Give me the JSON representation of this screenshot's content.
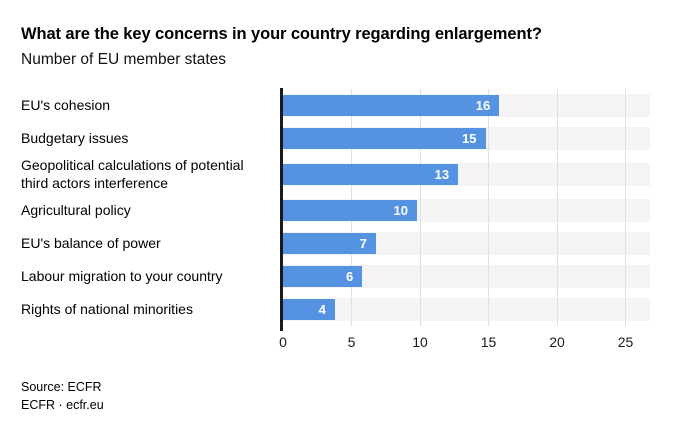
{
  "header": {
    "title": "What are the key concerns in your country regarding enlargement?",
    "subtitle": "Number of EU member states"
  },
  "chart_data": {
    "type": "bar",
    "orientation": "horizontal",
    "title": "What are the key concerns in your country regarding enlargement?",
    "subtitle": "Number of EU member states",
    "categories": [
      "EU's cohesion",
      "Budgetary issues",
      "Geopolitical calculations of potential third actors interference",
      "Agricultural policy",
      "EU's balance of power",
      "Labour migration to your country",
      "Rights of national minorities"
    ],
    "values": [
      16,
      15,
      13,
      10,
      7,
      6,
      4
    ],
    "axis_ticks": [
      0,
      5,
      10,
      15,
      20,
      25
    ],
    "xlim": [
      0,
      25
    ],
    "xlabel": "",
    "ylabel": "",
    "grid": true,
    "legend": false,
    "value_labels": "inside-end-white",
    "bar_color": "#5593e2",
    "track_color": "#f4f4f4",
    "gridline_color": "#e0e0e0",
    "axis_color": "#1a1a1a",
    "value_label_color": "#ffffff"
  },
  "footer": {
    "source": "Source: ECFR",
    "credit": "ECFR · ecfr.eu"
  }
}
